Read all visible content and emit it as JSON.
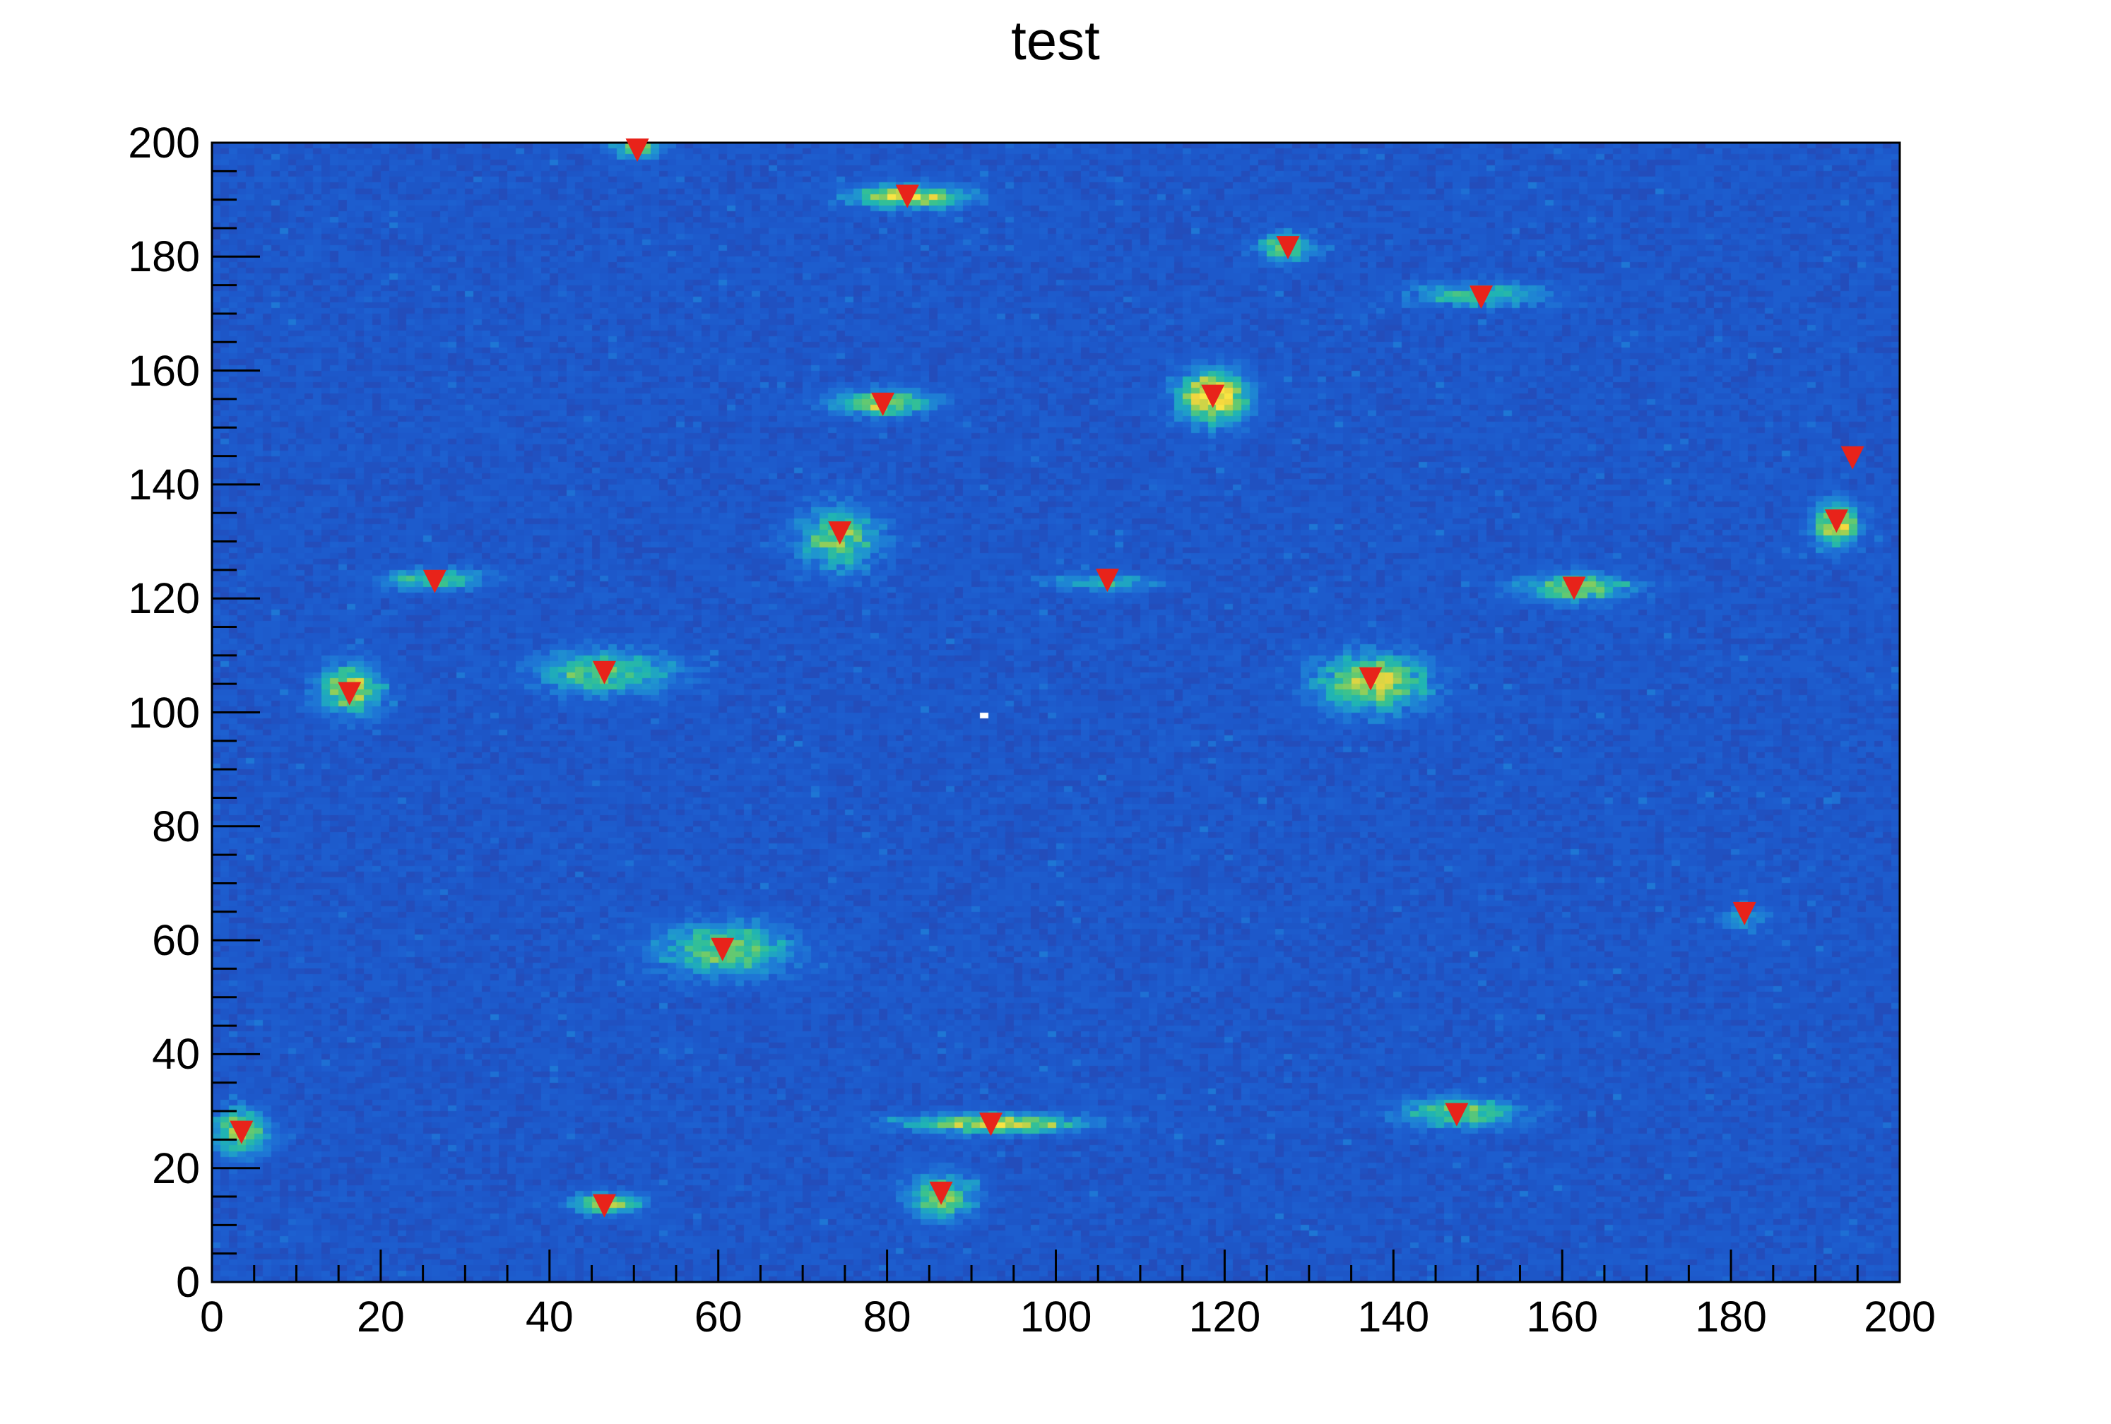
{
  "title": "test",
  "chart_data": {
    "type": "heatmap",
    "title": "test",
    "xlabel": "",
    "ylabel": "",
    "xlim": [
      0,
      200
    ],
    "ylim": [
      0,
      200
    ],
    "grid": false,
    "legend": "none",
    "bins": {
      "nx": 200,
      "ny": 200
    },
    "x_tick_step": 20,
    "x_minor_tick_step": 5,
    "y_tick_step": 20,
    "y_minor_tick_step": 5,
    "x_tick_labels": [
      "0",
      "20",
      "40",
      "60",
      "80",
      "100",
      "120",
      "140",
      "160",
      "180",
      "200"
    ],
    "y_tick_labels": [
      "0",
      "20",
      "40",
      "60",
      "80",
      "100",
      "120",
      "140",
      "160",
      "180",
      "200"
    ],
    "noise_seed": 20240101,
    "background": {
      "noise_base_range": [
        0.17,
        0.3
      ],
      "main_blue": "#1d56c8",
      "dark_blue": "#2a42a8",
      "light_blue": "#1e6ad2"
    },
    "palette_stops": [
      [
        0.0,
        "#2b3f9e"
      ],
      [
        0.14,
        "#2847b2"
      ],
      [
        0.22,
        "#1d56c8"
      ],
      [
        0.3,
        "#1d5fd0"
      ],
      [
        0.38,
        "#1e79d6"
      ],
      [
        0.46,
        "#1f96cf"
      ],
      [
        0.54,
        "#1fb3b4"
      ],
      [
        0.62,
        "#35c193"
      ],
      [
        0.7,
        "#66c96f"
      ],
      [
        0.78,
        "#9ed054"
      ],
      [
        0.86,
        "#d8d545"
      ],
      [
        0.93,
        "#f5d63d"
      ],
      [
        0.985,
        "#fdf44a"
      ],
      [
        1.0,
        "#ffffff"
      ]
    ],
    "marker": {
      "shape": "triangle-down",
      "color": "#e8231a",
      "width": 33,
      "height": 33
    },
    "peaks": [
      {
        "x": 50.4,
        "y": 198.8,
        "blob": {
          "cx": 50.4,
          "cy": 199.5,
          "amp": 0.5,
          "sx": 2.0,
          "sy": 1.6
        }
      },
      {
        "x": 82.4,
        "y": 190.7,
        "blob": {
          "cx": 82.5,
          "cy": 190.5,
          "amp": 0.65,
          "sx": 4.5,
          "sy": 1.4
        }
      },
      {
        "x": 127.5,
        "y": 181.7,
        "blob": {
          "cx": 127.3,
          "cy": 181.5,
          "amp": 0.5,
          "sx": 2.2,
          "sy": 1.8
        }
      },
      {
        "x": 150.4,
        "y": 173.0,
        "blob": {
          "cx": 150.5,
          "cy": 173.3,
          "amp": 0.42,
          "sx": 5.5,
          "sy": 1.4
        }
      },
      {
        "x": 79.5,
        "y": 154.2,
        "blob": {
          "cx": 79.5,
          "cy": 154.3,
          "amp": 0.62,
          "sx": 4.0,
          "sy": 1.5
        }
      },
      {
        "x": 118.6,
        "y": 155.6,
        "blob": {
          "cx": 118.6,
          "cy": 155.3,
          "amp": 0.8,
          "sx": 2.8,
          "sy": 3.2
        }
      },
      {
        "x": 194.4,
        "y": 144.8,
        "blob": null
      },
      {
        "x": 74.4,
        "y": 131.6,
        "blob": {
          "cx": 74.3,
          "cy": 130.5,
          "amp": 0.5,
          "sx": 3.2,
          "sy": 3.8
        }
      },
      {
        "x": 192.5,
        "y": 133.7,
        "blob": {
          "cx": 192.6,
          "cy": 133.0,
          "amp": 0.68,
          "sx": 1.8,
          "sy": 2.6
        }
      },
      {
        "x": 26.4,
        "y": 123.1,
        "blob": {
          "cx": 26.5,
          "cy": 123.3,
          "amp": 0.5,
          "sx": 4.0,
          "sy": 1.2
        }
      },
      {
        "x": 106.1,
        "y": 123.3,
        "blob": {
          "cx": 106.0,
          "cy": 122.7,
          "amp": 0.35,
          "sx": 4.5,
          "sy": 1.0
        }
      },
      {
        "x": 161.4,
        "y": 121.9,
        "blob": {
          "cx": 161.5,
          "cy": 121.8,
          "amp": 0.52,
          "sx": 4.5,
          "sy": 1.7
        }
      },
      {
        "x": 16.3,
        "y": 103.4,
        "blob": {
          "cx": 16.4,
          "cy": 104.0,
          "amp": 0.62,
          "sx": 2.5,
          "sy": 3.0
        }
      },
      {
        "x": 46.5,
        "y": 107.1,
        "blob": {
          "cx": 46.8,
          "cy": 107.0,
          "amp": 0.5,
          "sx": 5.5,
          "sy": 2.6
        }
      },
      {
        "x": 137.3,
        "y": 106.0,
        "blob": {
          "cx": 137.6,
          "cy": 105.3,
          "amp": 0.62,
          "sx": 4.5,
          "sy": 3.4
        }
      },
      {
        "x": 60.5,
        "y": 58.5,
        "blob": {
          "cx": 60.8,
          "cy": 58.3,
          "amp": 0.48,
          "sx": 5.5,
          "sy": 3.2
        }
      },
      {
        "x": 181.6,
        "y": 64.8,
        "blob": {
          "cx": 181.6,
          "cy": 63.8,
          "amp": 0.22,
          "sx": 2.0,
          "sy": 1.8
        }
      },
      {
        "x": 92.3,
        "y": 27.8,
        "blob": {
          "cx": 92.8,
          "cy": 27.8,
          "amp": 0.68,
          "sx": 7.0,
          "sy": 1.1
        }
      },
      {
        "x": 147.5,
        "y": 29.5,
        "blob": {
          "cx": 147.8,
          "cy": 29.6,
          "amp": 0.46,
          "sx": 5.0,
          "sy": 1.9
        }
      },
      {
        "x": 86.4,
        "y": 15.7,
        "blob": {
          "cx": 86.5,
          "cy": 14.8,
          "amp": 0.52,
          "sx": 2.6,
          "sy": 2.8
        }
      },
      {
        "x": 3.5,
        "y": 26.4,
        "blob": {
          "cx": 3.3,
          "cy": 26.3,
          "amp": 0.55,
          "sx": 2.2,
          "sy": 2.8
        }
      },
      {
        "x": 46.5,
        "y": 13.5,
        "blob": {
          "cx": 46.7,
          "cy": 13.8,
          "amp": 0.62,
          "sx": 2.6,
          "sy": 1.3
        }
      }
    ],
    "white_bin": {
      "x": 91,
      "y": 99
    }
  }
}
